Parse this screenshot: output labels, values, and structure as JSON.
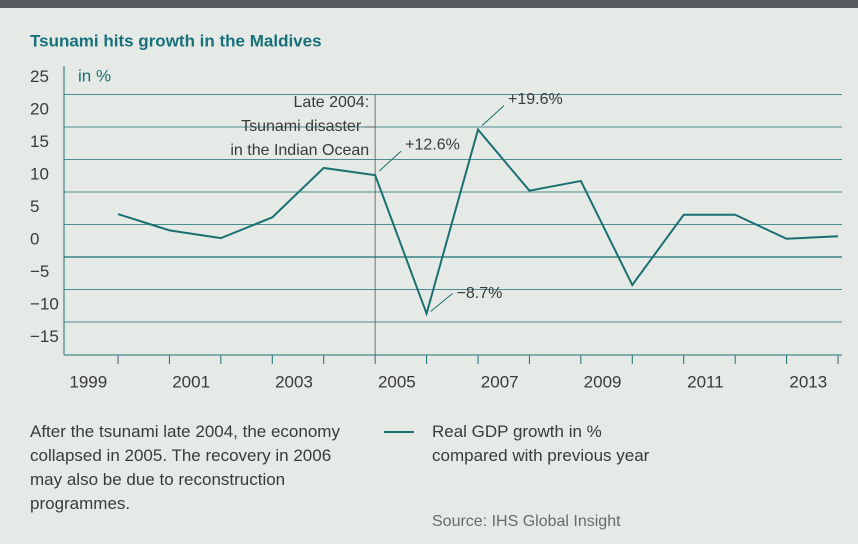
{
  "chart_data": {
    "type": "line",
    "title": "Tsunami hits growth in the Maldives",
    "y_unit_label": "in %",
    "x": [
      1999,
      2000,
      2001,
      2002,
      2003,
      2004,
      2005,
      2006,
      2007,
      2008,
      2009,
      2010,
      2011,
      2012,
      2013
    ],
    "series": [
      {
        "name": "Real GDP growth in % compared with previous year",
        "color": "#1a6f73",
        "values": [
          6.6,
          4.1,
          2.9,
          6.1,
          13.7,
          12.6,
          -8.7,
          19.6,
          10.2,
          11.7,
          -4.3,
          6.5,
          6.5,
          2.8,
          3.2
        ],
        "value_labels": [
          null,
          null,
          null,
          null,
          null,
          "+12.6%",
          "−8.7%",
          "+19.6%",
          null,
          null,
          null,
          null,
          null,
          null,
          null
        ]
      }
    ],
    "xlim": [
      1999,
      2013
    ],
    "xticks": [
      1999,
      2001,
      2003,
      2005,
      2007,
      2009,
      2011,
      2013
    ],
    "ylim": [
      -15,
      25
    ],
    "yticks": [
      {
        "value": -15,
        "label": "−15"
      },
      {
        "value": -10,
        "label": "−10"
      },
      {
        "value": -5,
        "label": "−5"
      },
      0,
      5,
      10,
      15,
      20,
      25
    ],
    "grid": true,
    "annotation": {
      "x": 2004,
      "lines": [
        "Late 2004:",
        "Tsunami disaster",
        "in the Indian Ocean"
      ]
    },
    "note": "After the tsunami late 2004, the economy collapsed in 2005. The recovery in 2006 may also be due to reconstruction programmes.",
    "source": "Source: IHS Global Insight"
  }
}
